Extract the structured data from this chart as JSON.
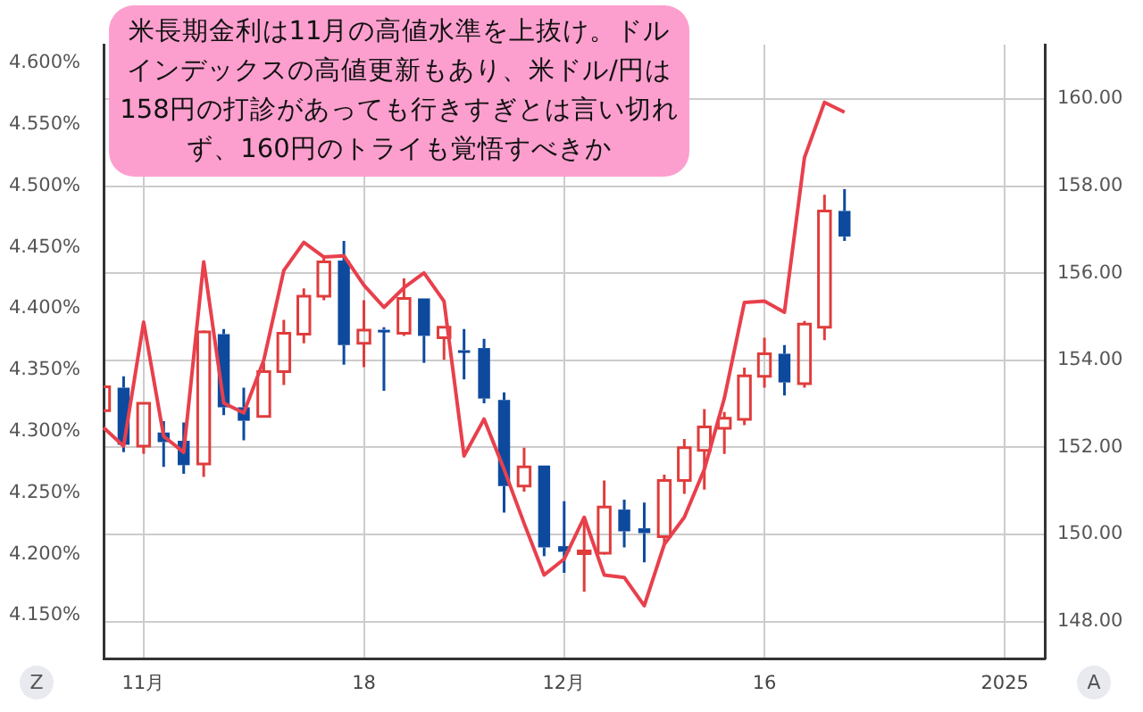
{
  "chart_data": {
    "type": "candlestick",
    "title": "米長期金利は11月の高値水準を上抜け。ドルインデックスの高値更新もあり、米ドル/円は158円の打診があっても行きすぎとは言い切れず、160円のトライも覚悟すべきか",
    "categories": [
      null,
      null,
      "11月",
      null,
      null,
      null,
      null,
      null,
      null,
      null,
      null,
      null,
      null,
      "18",
      null,
      null,
      null,
      null,
      null,
      null,
      null,
      null,
      null,
      "12月",
      null,
      null,
      null,
      null,
      null,
      null,
      null,
      null,
      null,
      "16",
      null,
      null,
      null,
      null,
      null,
      null,
      null,
      null,
      null,
      null,
      null,
      "2025",
      null,
      null
    ],
    "series": [
      {
        "type": "line",
        "color": "#e8404c",
        "values": [
          4.303,
          4.288,
          4.389,
          4.296,
          4.283,
          4.438,
          4.323,
          4.315,
          4.358,
          4.431,
          4.454,
          4.442,
          4.443,
          4.419,
          4.401,
          4.417,
          4.429,
          4.406,
          4.28,
          4.31,
          4.269,
          4.225,
          4.183,
          4.196,
          4.23,
          4.183,
          4.181,
          4.158,
          4.208,
          4.23,
          4.269,
          4.327,
          4.405,
          4.406,
          4.397,
          4.523,
          4.568,
          4.56,
          null,
          null,
          null,
          null,
          null,
          null,
          null,
          null,
          null,
          null
        ]
      },
      {
        "type": "candlestick",
        "axis": "y2",
        "ohlc": [
          [
            152.84,
            153.4,
            152.84,
            153.39
          ],
          [
            153.37,
            153.63,
            151.89,
            152.06
          ],
          [
            152.03,
            153.01,
            151.85,
            153.01
          ],
          [
            152.34,
            152.6,
            151.55,
            152.12
          ],
          [
            152.15,
            152.57,
            151.39,
            151.59
          ],
          [
            151.62,
            154.68,
            151.32,
            154.65
          ],
          [
            154.6,
            154.72,
            152.74,
            152.92
          ],
          [
            152.92,
            153.37,
            152.16,
            152.61
          ],
          [
            152.71,
            153.94,
            152.7,
            153.74
          ],
          [
            153.74,
            154.93,
            153.43,
            154.62
          ],
          [
            154.6,
            155.65,
            154.39,
            155.47
          ],
          [
            155.47,
            156.4,
            155.38,
            156.26
          ],
          [
            156.29,
            156.74,
            153.9,
            154.35
          ],
          [
            154.39,
            155.38,
            153.84,
            154.69
          ],
          [
            154.7,
            154.76,
            153.3,
            154.68
          ],
          [
            154.62,
            155.88,
            154.56,
            155.42
          ],
          [
            155.42,
            155.42,
            153.94,
            154.56
          ],
          [
            154.52,
            154.76,
            154.01,
            154.76
          ],
          [
            154.23,
            154.72,
            153.56,
            154.2
          ],
          [
            154.28,
            154.49,
            153.01,
            153.12
          ],
          [
            153.09,
            153.26,
            150.5,
            151.11
          ],
          [
            151.11,
            151.99,
            150.98,
            151.55
          ],
          [
            151.58,
            151.58,
            149.5,
            149.7
          ],
          [
            149.73,
            150.76,
            149.12,
            149.6
          ],
          [
            149.6,
            150.39,
            148.68,
            149.62
          ],
          [
            149.57,
            151.24,
            149.54,
            150.63
          ],
          [
            150.57,
            150.8,
            149.7,
            150.07
          ],
          [
            150.14,
            150.73,
            149.36,
            150.03
          ],
          [
            149.95,
            151.37,
            149.77,
            151.24
          ],
          [
            151.24,
            152.19,
            150.93,
            151.99
          ],
          [
            151.93,
            152.88,
            151.03,
            152.47
          ],
          [
            152.44,
            152.81,
            151.85,
            152.67
          ],
          [
            152.64,
            153.83,
            152.51,
            153.64
          ],
          [
            153.63,
            154.52,
            153.37,
            154.15
          ],
          [
            154.15,
            154.35,
            153.19,
            153.49
          ],
          [
            153.46,
            154.9,
            153.37,
            154.83
          ],
          [
            154.76,
            157.8,
            154.46,
            157.43
          ],
          [
            157.43,
            157.93,
            156.74,
            156.84
          ],
          null,
          null,
          null,
          null,
          null,
          null,
          null,
          null,
          null,
          null
        ],
        "colors": [
          "#e03c3c",
          "#0d4a9e",
          "#e03c3c",
          "#0d4a9e",
          "#0d4a9e",
          "#e03c3c",
          "#0d4a9e",
          "#0d4a9e",
          "#e03c3c",
          "#e03c3c",
          "#e03c3c",
          "#e03c3c",
          "#0d4a9e",
          "#e03c3c",
          "#0d4a9e",
          "#e03c3c",
          "#0d4a9e",
          "#e03c3c",
          "#0d4a9e",
          "#0d4a9e",
          "#0d4a9e",
          "#e03c3c",
          "#0d4a9e",
          "#0d4a9e",
          "#e03c3c",
          "#e03c3c",
          "#0d4a9e",
          "#0d4a9e",
          "#e03c3c",
          "#e03c3c",
          "#e03c3c",
          "#e03c3c",
          "#e03c3c",
          "#e03c3c",
          "#0d4a9e",
          "#e03c3c",
          "#e03c3c",
          "#0d4a9e",
          null,
          null,
          null,
          null,
          null,
          null,
          null,
          null,
          null,
          null
        ]
      }
    ],
    "ylim": [
      4.115,
      4.615
    ],
    "yticks": [
      {
        "value": 4.15,
        "label": "4.150%"
      },
      {
        "value": 4.2,
        "label": "4.200%"
      },
      {
        "value": 4.25,
        "label": "4.250%"
      },
      {
        "value": 4.3,
        "label": "4.300%"
      },
      {
        "value": 4.35,
        "label": "4.350%"
      },
      {
        "value": 4.4,
        "label": "4.400%"
      },
      {
        "value": 4.45,
        "label": "4.450%"
      },
      {
        "value": 4.5,
        "label": "4.500%"
      },
      {
        "value": 4.55,
        "label": "4.550%"
      },
      {
        "value": 4.6,
        "label": "4.600%"
      }
    ],
    "y2lim": [
      147.15,
      161.25
    ],
    "y2ticks": [
      {
        "value": 148,
        "label": "148.00"
      },
      {
        "value": 150,
        "label": "150.00"
      },
      {
        "value": 152,
        "label": "152.00"
      },
      {
        "value": 154,
        "label": "154.00"
      },
      {
        "value": 156,
        "label": "156.00"
      },
      {
        "value": 158,
        "label": "158.00"
      },
      {
        "value": 160,
        "label": "160.00"
      }
    ],
    "grid": true,
    "annotations": [
      "Z",
      "A"
    ]
  }
}
